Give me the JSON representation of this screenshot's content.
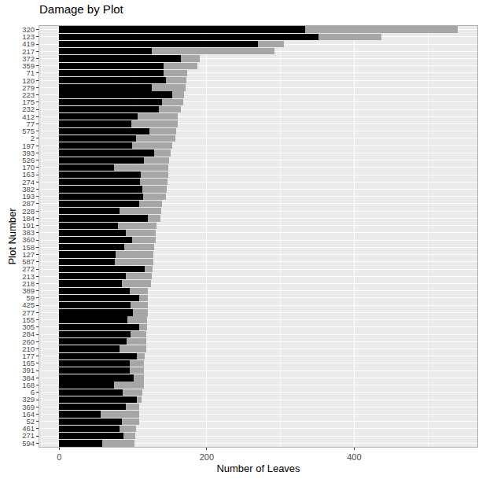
{
  "chart_data": {
    "type": "bar",
    "title": "Damage by Plot",
    "x_label": "Number of Leaves",
    "y_label": "Plot Number",
    "orientation": "horizontal",
    "stacked": true,
    "grid": true,
    "categories": [
      "320",
      "123",
      "419",
      "217",
      "372",
      "359",
      "71",
      "120",
      "279",
      "223",
      "175",
      "232",
      "412",
      "77",
      "575",
      "2",
      "197",
      "393",
      "526",
      "170",
      "163",
      "274",
      "382",
      "193",
      "287",
      "228",
      "184",
      "191",
      "383",
      "360",
      "158",
      "127",
      "587",
      "272",
      "213",
      "218",
      "389",
      "59",
      "425",
      "277",
      "155",
      "305",
      "284",
      "260",
      "210",
      "177",
      "165",
      "391",
      "384",
      "168",
      "6",
      "329",
      "369",
      "164",
      "52",
      "461",
      "271",
      "594"
    ],
    "series": [
      {
        "color": "#000000",
        "values": [
          333,
          352,
          269,
          126,
          165,
          142,
          142,
          145,
          126,
          153,
          139,
          135,
          106,
          98,
          122,
          104,
          99,
          129,
          115,
          74,
          111,
          110,
          113,
          114,
          108,
          82,
          120,
          80,
          90,
          99,
          88,
          76,
          75,
          116,
          90,
          85,
          96,
          108,
          97,
          100,
          92,
          108,
          97,
          91,
          82,
          105,
          96,
          96,
          101,
          74,
          86,
          105,
          90,
          56,
          85,
          82,
          87,
          58
        ]
      },
      {
        "color": "#a6a6a6",
        "values": [
          207,
          85,
          36,
          166,
          26,
          45,
          32,
          27,
          45,
          16,
          29,
          30,
          55,
          63,
          37,
          54,
          54,
          22,
          34,
          74,
          37,
          37,
          33,
          31,
          31,
          56,
          17,
          52,
          41,
          32,
          41,
          52,
          53,
          11,
          36,
          39,
          24,
          12,
          23,
          20,
          27,
          11,
          21,
          27,
          36,
          11,
          19,
          19,
          14,
          41,
          27,
          7,
          18,
          52,
          23,
          22,
          16,
          44
        ]
      }
    ],
    "xlim": [
      -27,
      567
    ],
    "xticks": [
      0,
      200,
      400
    ]
  }
}
